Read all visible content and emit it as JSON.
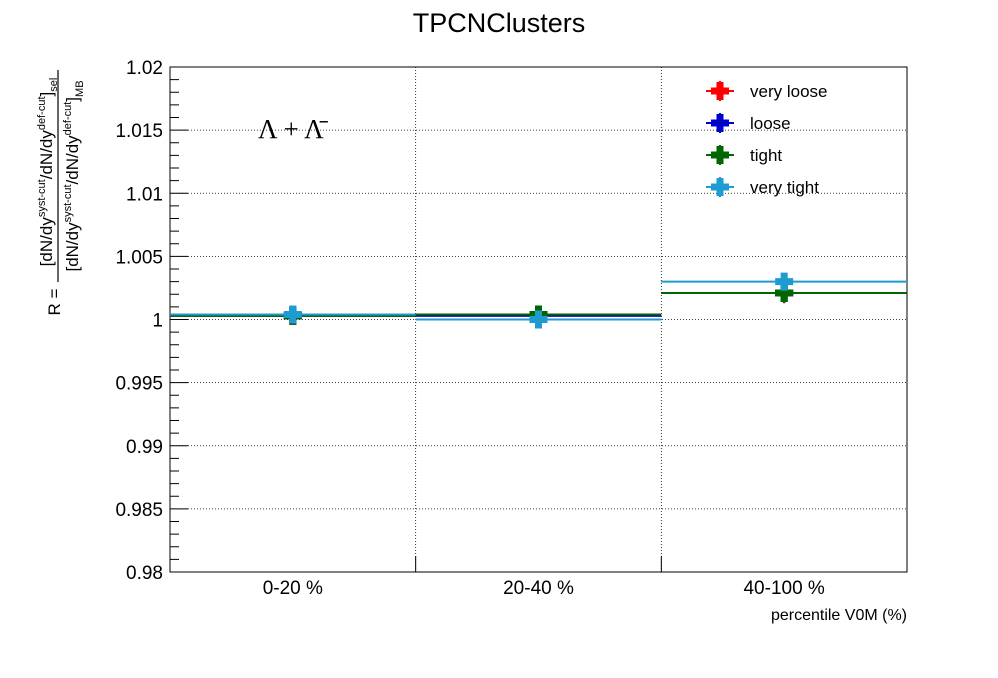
{
  "chart_data": {
    "type": "scatter",
    "title": "TPCNClusters",
    "xlabel": "percentile V0M (%)",
    "ylabel": {
      "prefix": "R =",
      "numerator": "[dN/dy^{syst-cut}/dN/dy^{def-cut}]_{sel}",
      "denominator": "[dN/dy^{syst-cut}/dN/dy^{def-cut}]_{MB}"
    },
    "annotation": "Λ + Λ̄",
    "categories": [
      "0-20 %",
      "20-40 %",
      "40-100 %"
    ],
    "ylim": [
      0.98,
      1.02
    ],
    "yticks": [
      "0.98",
      "0.985",
      "0.99",
      "0.995",
      "1",
      "1.005",
      "1.01",
      "1.015",
      "1.02"
    ],
    "grid": true,
    "legend_position": "top-right",
    "series": [
      {
        "name": "very loose",
        "color": "#ff0000",
        "values": [
          1.0003,
          1.0003,
          1.0021
        ],
        "errors": [
          0.0006,
          0.0006,
          0.0008
        ]
      },
      {
        "name": "loose",
        "color": "#0000cc",
        "values": [
          1.0003,
          1.0003,
          1.0021
        ],
        "errors": [
          0.0006,
          0.0006,
          0.0008
        ]
      },
      {
        "name": "tight",
        "color": "#006600",
        "values": [
          1.0003,
          1.0004,
          1.0021
        ],
        "errors": [
          0.0006,
          0.0006,
          0.0008
        ]
      },
      {
        "name": "very tight",
        "color": "#1e9bd0",
        "values": [
          1.0004,
          1.0,
          1.003
        ],
        "errors": [
          0.0004,
          0.0004,
          0.0004
        ]
      }
    ]
  }
}
